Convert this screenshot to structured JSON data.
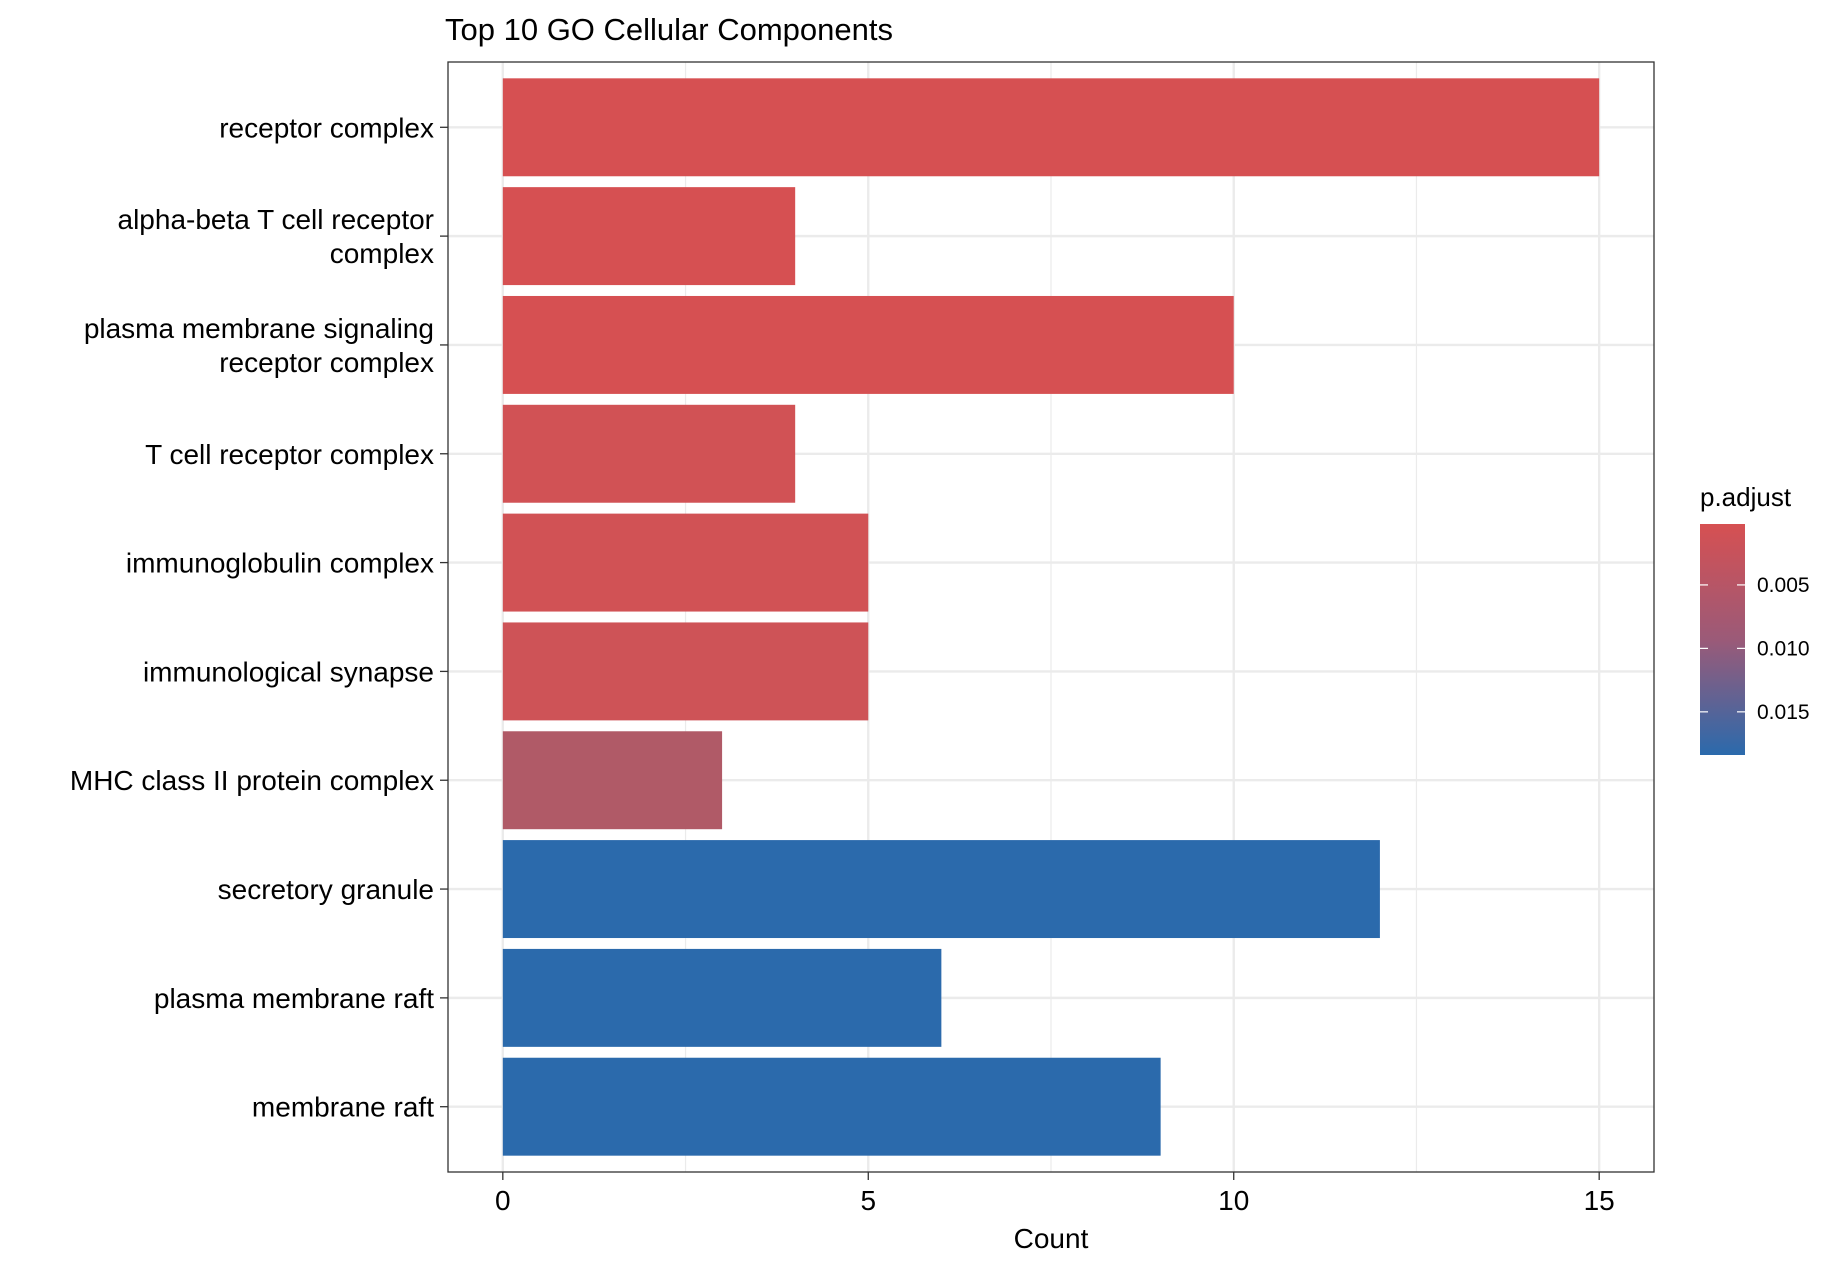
{
  "chart_data": {
    "type": "bar",
    "orientation": "horizontal",
    "title": "Top 10 GO Cellular Components",
    "xlabel": "Count",
    "ylabel": "",
    "xlim": [
      -0.75,
      15.75
    ],
    "x_ticks": [
      0,
      5,
      10,
      15
    ],
    "grid": true,
    "categories": [
      [
        "receptor complex"
      ],
      [
        "alpha-beta T cell receptor",
        "complex"
      ],
      [
        "plasma membrane signaling",
        "receptor complex"
      ],
      [
        "T cell receptor complex"
      ],
      [
        "immunoglobulin complex"
      ],
      [
        "immunological synapse"
      ],
      [
        "MHC class II protein complex"
      ],
      [
        "secretory granule"
      ],
      [
        "plasma membrane raft"
      ],
      [
        "membrane raft"
      ]
    ],
    "values": [
      15,
      4,
      10,
      4,
      5,
      5,
      3,
      12,
      6,
      9
    ],
    "colors": [
      "#D65052",
      "#D65052",
      "#D65052",
      "#D15255",
      "#D15255",
      "#CE5357",
      "#B05A67",
      "#2B6AAC",
      "#2B6AAC",
      "#2B6AAC"
    ],
    "legend": {
      "title": "p.adjust",
      "placement": "right",
      "tick_labels": [
        "0.005",
        "0.010",
        "0.015"
      ],
      "tick_values": [
        0.005,
        0.01,
        0.015
      ],
      "range": [
        0.0002,
        0.0184
      ],
      "color_low": "#D65052",
      "color_high": "#2B6AAC"
    }
  }
}
